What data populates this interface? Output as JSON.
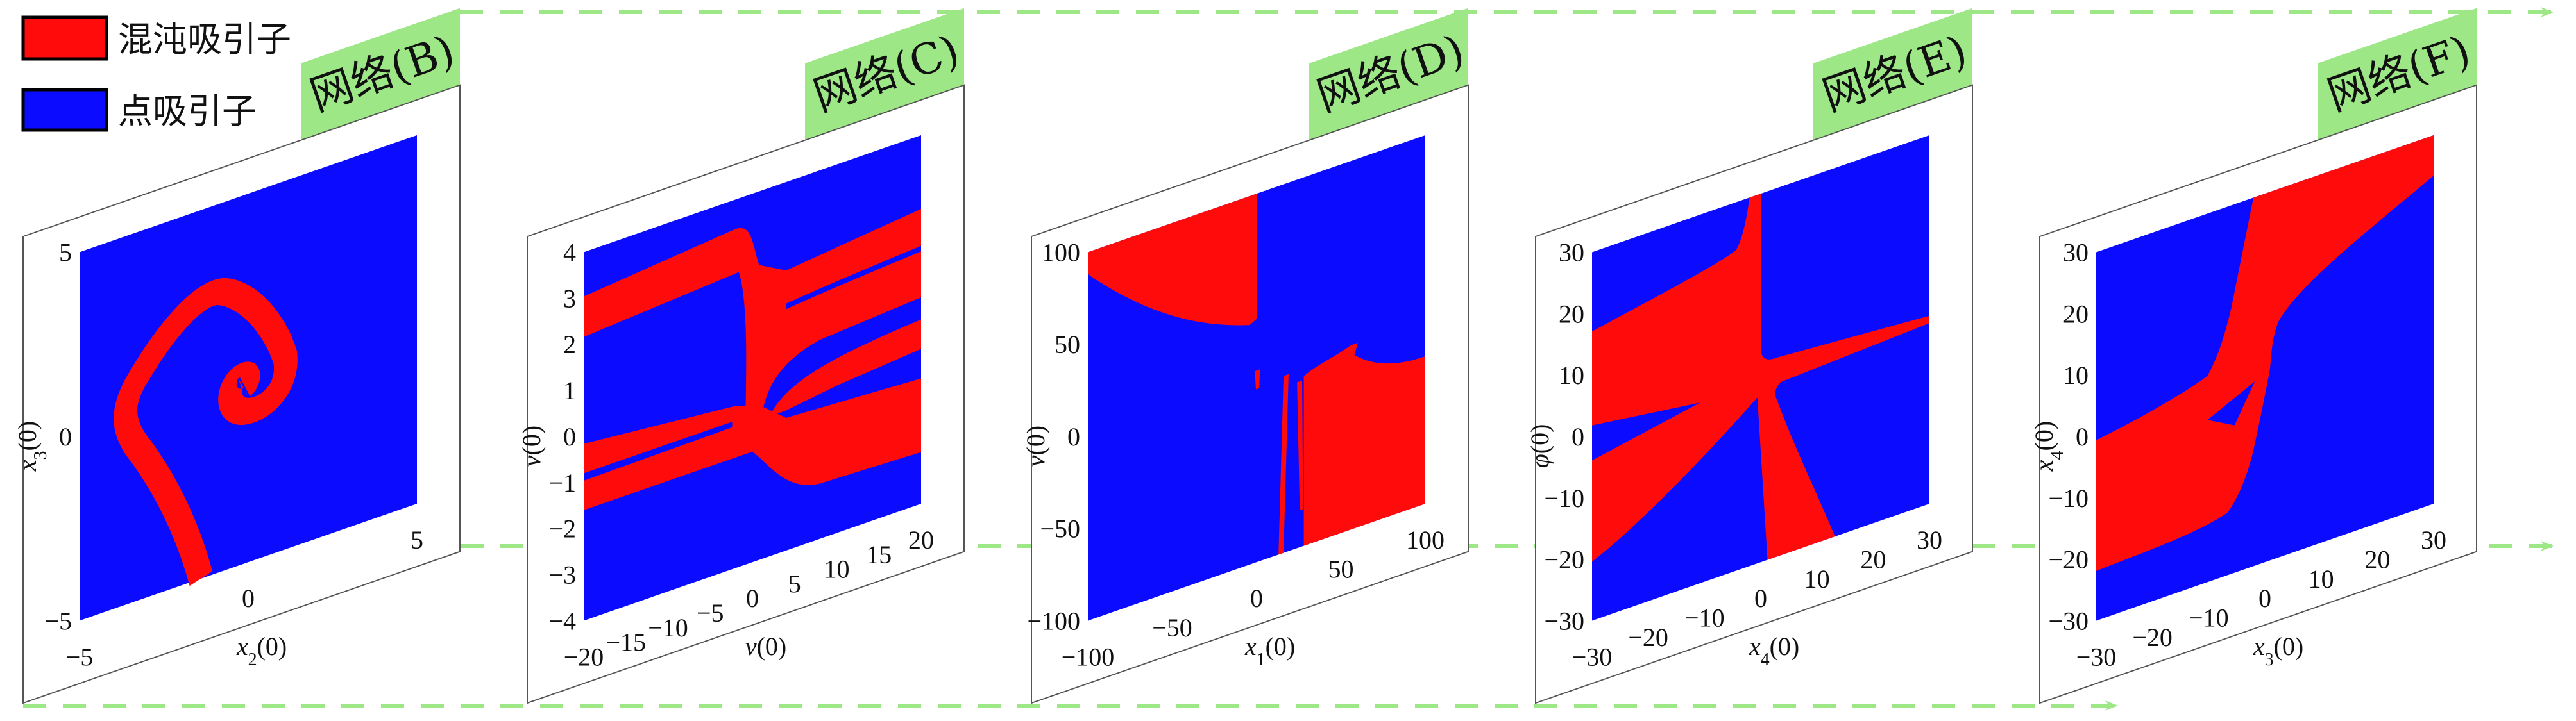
{
  "colors": {
    "chaotic": "#ff0b0b",
    "point": "#0b0bff",
    "tag": "#9de787",
    "arrow": "#9de787"
  },
  "legend": {
    "items": [
      {
        "label": "混沌吸引子",
        "color": "#ff0b0b"
      },
      {
        "label": "点吸引子",
        "color": "#0b0bff"
      }
    ]
  },
  "chart_data": [
    {
      "type": "heatmap",
      "title": "网络(B)",
      "xlabel": {
        "var": "x",
        "sub": "2",
        "suffix": "(0)"
      },
      "ylabel": {
        "var": "x",
        "sub": "3",
        "suffix": "(0)"
      },
      "xlim": [
        -5,
        5
      ],
      "ylim": [
        -5,
        5
      ],
      "xticks": [
        -5,
        0,
        5
      ],
      "yticks": [
        -5,
        0,
        5
      ],
      "legend": [
        "混沌吸引子",
        "点吸引子"
      ],
      "legend_position": "top-left"
    },
    {
      "type": "heatmap",
      "title": "网络(C)",
      "xlabel": {
        "var": "v",
        "sub": "",
        "suffix": "(0)"
      },
      "ylabel": {
        "var": "v",
        "sub": "",
        "suffix": "(0)"
      },
      "xlim": [
        -20,
        20
      ],
      "ylim": [
        -4,
        4
      ],
      "xticks": [
        -20,
        -15,
        -10,
        -5,
        0,
        5,
        10,
        15,
        20
      ],
      "yticks": [
        -4,
        -3,
        -2,
        -1,
        0,
        1,
        2,
        3,
        4
      ]
    },
    {
      "type": "heatmap",
      "title": "网络(D)",
      "xlabel": {
        "var": "x",
        "sub": "1",
        "suffix": "(0)"
      },
      "ylabel": {
        "var": "v",
        "sub": "",
        "suffix": "(0)"
      },
      "xlim": [
        -100,
        100
      ],
      "ylim": [
        -100,
        100
      ],
      "xticks": [
        -100,
        -50,
        0,
        50,
        100
      ],
      "yticks": [
        -100,
        -50,
        0,
        50,
        100
      ]
    },
    {
      "type": "heatmap",
      "title": "网络(E)",
      "xlabel": {
        "var": "x",
        "sub": "4",
        "suffix": "(0)"
      },
      "ylabel": {
        "var": "φ",
        "sub": "",
        "suffix": "(0)"
      },
      "xlim": [
        -30,
        30
      ],
      "ylim": [
        -30,
        30
      ],
      "xticks": [
        -30,
        -20,
        -10,
        0,
        10,
        20,
        30
      ],
      "yticks": [
        -30,
        -20,
        -10,
        0,
        10,
        20,
        30
      ]
    },
    {
      "type": "heatmap",
      "title": "网络(F)",
      "xlabel": {
        "var": "x",
        "sub": "3",
        "suffix": "(0)"
      },
      "ylabel": {
        "var": "x",
        "sub": "4",
        "suffix": "(0)"
      },
      "xlim": [
        -30,
        30
      ],
      "ylim": [
        -30,
        30
      ],
      "xticks": [
        -30,
        -20,
        -10,
        0,
        10,
        20,
        30
      ],
      "yticks": [
        -30,
        -20,
        -10,
        0,
        10,
        20,
        30
      ]
    }
  ]
}
